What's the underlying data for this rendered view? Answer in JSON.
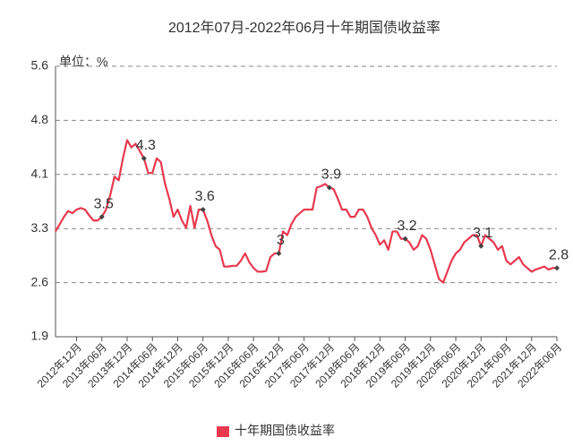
{
  "chart_data": {
    "type": "line",
    "title": "2012年07月-2022年06月十年期国债收益率",
    "unit_label": "单位：%",
    "categories": [
      null,
      null,
      null,
      null,
      null,
      "2012年12月",
      null,
      null,
      null,
      null,
      null,
      "2013年06月",
      null,
      null,
      null,
      null,
      null,
      "2013年12月",
      null,
      null,
      null,
      null,
      null,
      "2014年06月",
      null,
      null,
      null,
      null,
      null,
      "2014年12月",
      null,
      null,
      null,
      null,
      null,
      "2015年06月",
      null,
      null,
      null,
      null,
      null,
      "2015年12月",
      null,
      null,
      null,
      null,
      null,
      "2016年06月",
      null,
      null,
      null,
      null,
      null,
      "2016年12月",
      null,
      null,
      null,
      null,
      null,
      "2017年06月",
      null,
      null,
      null,
      null,
      null,
      "2017年12月",
      null,
      null,
      null,
      null,
      null,
      "2018年06月",
      null,
      null,
      null,
      null,
      null,
      "2018年12月",
      null,
      null,
      null,
      null,
      null,
      "2019年06月",
      null,
      null,
      null,
      null,
      null,
      "2019年12月",
      null,
      null,
      null,
      null,
      null,
      "2020年06月",
      null,
      null,
      null,
      null,
      null,
      "2020年12月",
      null,
      null,
      null,
      null,
      null,
      "2021年06月",
      null,
      null,
      null,
      null,
      null,
      "2021年12月",
      null,
      null,
      null,
      null,
      null,
      "2022年06月"
    ],
    "series": [
      {
        "name": "十年期国债收益率",
        "color": "#e8394f",
        "values": [
          3.3,
          3.4,
          3.5,
          3.58,
          3.55,
          3.6,
          3.62,
          3.6,
          3.52,
          3.45,
          3.45,
          3.5,
          3.6,
          3.8,
          4.05,
          4.0,
          4.3,
          4.55,
          4.45,
          4.5,
          4.4,
          4.3,
          4.1,
          4.1,
          4.3,
          4.25,
          3.95,
          3.75,
          3.5,
          3.6,
          3.45,
          3.35,
          3.65,
          3.35,
          3.6,
          3.6,
          3.45,
          3.25,
          3.1,
          3.05,
          2.82,
          2.82,
          2.83,
          2.83,
          2.9,
          3.0,
          2.88,
          2.8,
          2.75,
          2.75,
          2.76,
          2.95,
          3.0,
          3.0,
          3.3,
          3.25,
          3.4,
          3.5,
          3.55,
          3.6,
          3.6,
          3.6,
          3.9,
          3.92,
          3.95,
          3.9,
          3.88,
          3.75,
          3.6,
          3.6,
          3.5,
          3.5,
          3.6,
          3.6,
          3.5,
          3.35,
          3.25,
          3.12,
          3.18,
          3.05,
          3.3,
          3.3,
          3.2,
          3.2,
          3.15,
          3.05,
          3.1,
          3.25,
          3.2,
          3.05,
          2.85,
          2.65,
          2.6,
          2.75,
          2.9,
          3.0,
          3.05,
          3.15,
          3.2,
          3.25,
          3.25,
          3.1,
          3.25,
          3.2,
          3.15,
          3.05,
          3.1,
          2.9,
          2.85,
          2.9,
          2.95,
          2.85,
          2.8,
          2.75,
          2.78,
          2.8,
          2.82,
          2.78,
          2.8,
          2.8
        ],
        "value_labels": [
          null,
          null,
          null,
          null,
          null,
          null,
          null,
          null,
          null,
          null,
          null,
          "3.5",
          null,
          null,
          null,
          null,
          null,
          null,
          null,
          null,
          null,
          "4.3",
          null,
          null,
          null,
          null,
          null,
          null,
          null,
          null,
          null,
          null,
          null,
          null,
          null,
          "3.6",
          null,
          null,
          null,
          null,
          null,
          null,
          null,
          null,
          null,
          null,
          null,
          null,
          null,
          null,
          null,
          null,
          null,
          "3",
          null,
          null,
          null,
          null,
          null,
          null,
          null,
          null,
          null,
          null,
          null,
          "3.9",
          null,
          null,
          null,
          null,
          null,
          null,
          null,
          null,
          null,
          null,
          null,
          null,
          null,
          null,
          null,
          null,
          null,
          "3.2",
          null,
          null,
          null,
          null,
          null,
          null,
          null,
          null,
          null,
          null,
          null,
          null,
          null,
          null,
          null,
          null,
          null,
          "3.1",
          null,
          null,
          null,
          null,
          null,
          null,
          null,
          null,
          null,
          null,
          null,
          null,
          null,
          null,
          null,
          null,
          null,
          "2.8"
        ]
      }
    ],
    "ylim": [
      1.86,
      5.56
    ],
    "yticks": [
      {
        "value": 1.86,
        "label": "1.9"
      },
      {
        "value": 2.6,
        "label": "2.6"
      },
      {
        "value": 3.34,
        "label": "3.3"
      },
      {
        "value": 4.08,
        "label": "4.1"
      },
      {
        "value": 4.82,
        "label": "4.8"
      },
      {
        "value": 5.56,
        "label": "5.6"
      }
    ],
    "grid": true,
    "legend": "bottom"
  }
}
